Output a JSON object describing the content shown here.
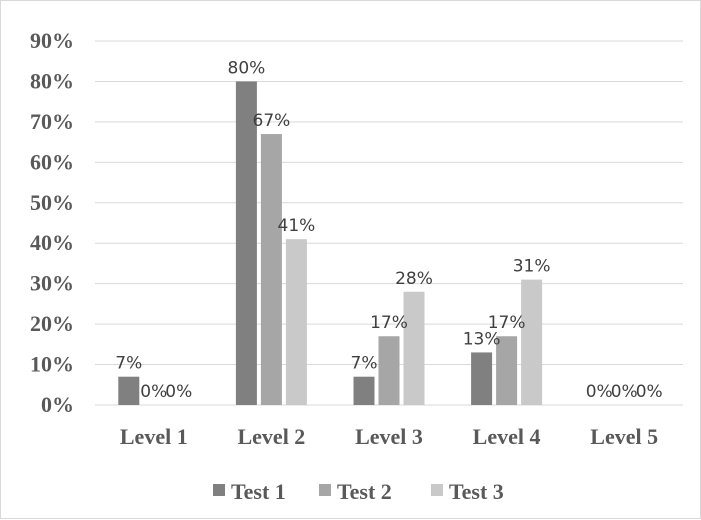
{
  "chart_data": {
    "type": "bar",
    "title": "",
    "xlabel": "",
    "ylabel": "",
    "categories": [
      "Level 1",
      "Level 2",
      "Level 3",
      "Level 4",
      "Level 5"
    ],
    "series": [
      {
        "name": "Test 1",
        "values": [
          7,
          80,
          7,
          13,
          0
        ],
        "labels": [
          "7%",
          "80%",
          "7%",
          "13%",
          "0%"
        ],
        "color": "#808080"
      },
      {
        "name": "Test 2",
        "values": [
          0,
          67,
          17,
          17,
          0
        ],
        "labels": [
          "0%",
          "67%",
          "17%",
          "17%",
          "0%"
        ],
        "color": "#a6a6a6"
      },
      {
        "name": "Test 3",
        "values": [
          0,
          41,
          28,
          31,
          0
        ],
        "labels": [
          "0%",
          "41%",
          "28%",
          "31%",
          "0%"
        ],
        "color": "#c9c9c9"
      }
    ],
    "ylim": [
      0,
      90
    ],
    "yticks": [
      0,
      10,
      20,
      30,
      40,
      50,
      60,
      70,
      80,
      90
    ],
    "ytick_labels": [
      "0%",
      "10%",
      "20%",
      "30%",
      "40%",
      "50%",
      "60%",
      "70%",
      "80%",
      "90%"
    ],
    "grid": true,
    "gridline_color": "#d9d9d9",
    "legend_position": "bottom"
  }
}
